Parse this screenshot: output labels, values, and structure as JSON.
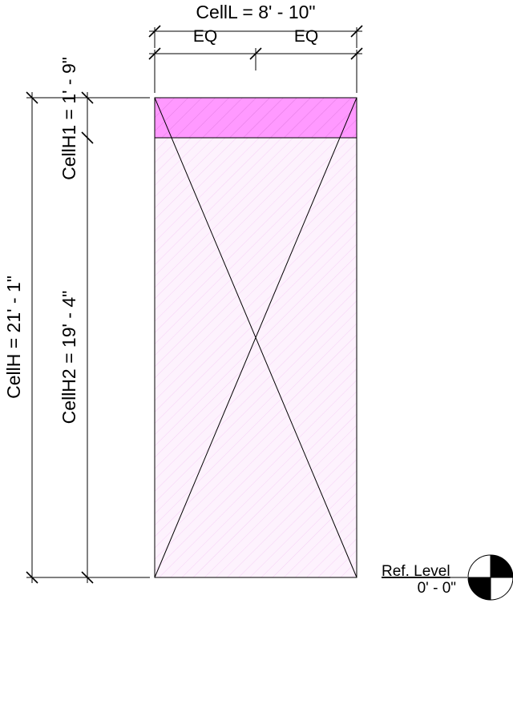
{
  "dimensions": {
    "cell_length": "CellL = 8' - 10\"",
    "eq_left": "EQ",
    "eq_right": "EQ",
    "cell_height": "CellH = 21' - 1\"",
    "cell_height_1": "CellH1 = 1' - 9\"",
    "cell_height_2": "CellH2 = 19' - 4\""
  },
  "level": {
    "name": "Ref. Level",
    "elevation": "0' - 0\""
  },
  "colors": {
    "line": "#000000",
    "upper_fill": "#ff99ff",
    "upper_hatch": "#cc66cc",
    "lower_fill": "#fdf2fd",
    "lower_hatch": "#f2c2f2",
    "background": "#ffffff"
  }
}
